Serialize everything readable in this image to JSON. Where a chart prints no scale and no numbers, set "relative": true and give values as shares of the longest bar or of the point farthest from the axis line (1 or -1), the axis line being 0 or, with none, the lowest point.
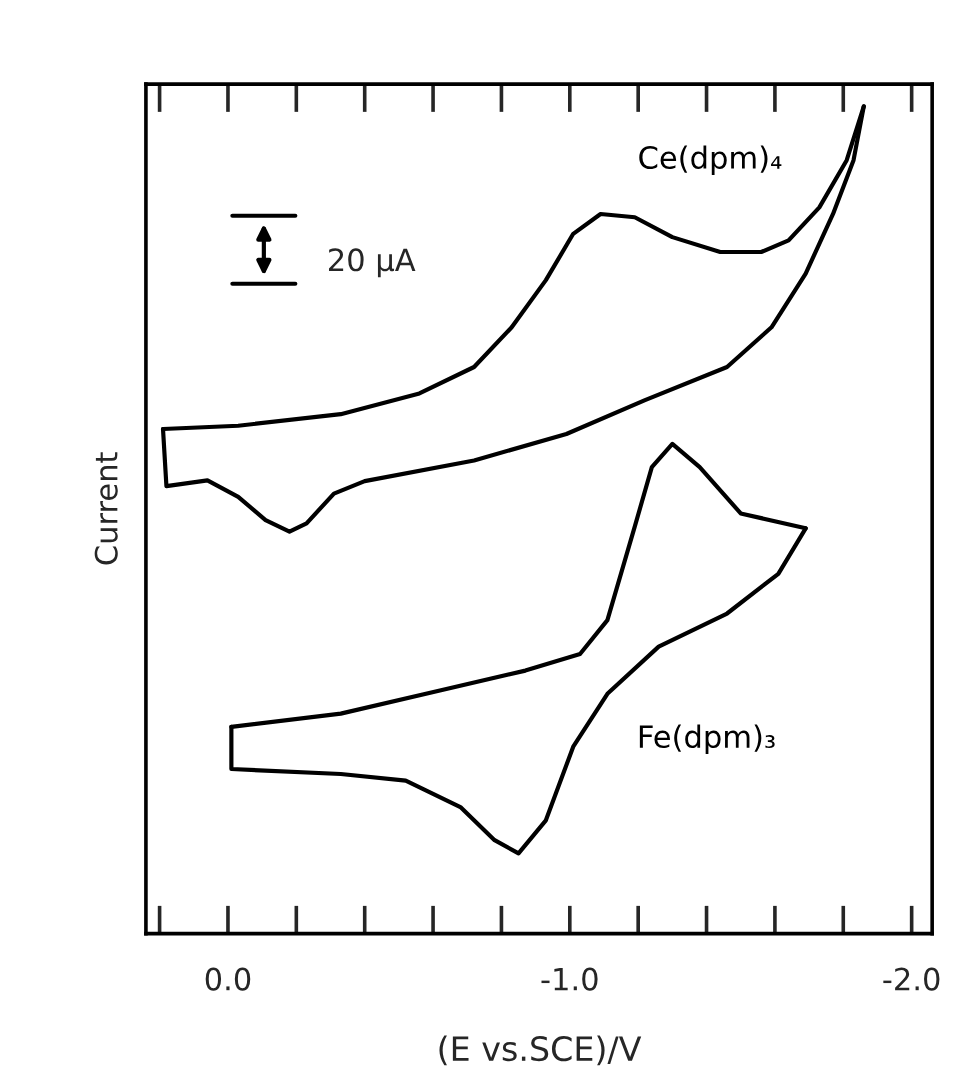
{
  "chart_data": {
    "type": "line",
    "relative": true,
    "xlabel": "(E vs.SCE)/V",
    "ylabel": "Current",
    "tick_labels": "x",
    "grid": false,
    "legend": false,
    "marker": "none",
    "line_style": "solid",
    "xlim": [
      0.24,
      -2.06
    ],
    "xticks": [
      {
        "value": 0.2,
        "label": null
      },
      {
        "value": 0.0,
        "label": "0.0"
      },
      {
        "value": -0.2,
        "label": null
      },
      {
        "value": -0.4,
        "label": null
      },
      {
        "value": -0.6,
        "label": null
      },
      {
        "value": -0.8,
        "label": null
      },
      {
        "value": -1.0,
        "label": "-1.0"
      },
      {
        "value": -1.2,
        "label": null
      },
      {
        "value": -1.4,
        "label": null
      },
      {
        "value": -1.6,
        "label": null
      },
      {
        "value": -1.8,
        "label": null
      },
      {
        "value": -2.0,
        "label": "-2.0"
      }
    ],
    "annotations": [
      "20 μA"
    ],
    "series": [
      {
        "name": "Ce(dpm)₄",
        "color": "#000000",
        "x": [
          0.19,
          -0.03,
          -0.33,
          -0.56,
          -0.72,
          -0.83,
          -0.93,
          -1.01,
          -1.09,
          -1.19,
          -1.3,
          -1.44,
          -1.56,
          -1.64,
          -1.73,
          -1.81,
          -1.86
        ],
        "values": [
          0.61,
          0.614,
          0.628,
          0.653,
          0.685,
          0.733,
          0.79,
          0.846,
          0.87,
          0.866,
          0.842,
          0.824,
          0.824,
          0.838,
          0.878,
          0.935,
          1.0
        ]
      },
      {
        "color": "#000000",
        "x": [
          -1.86,
          -1.83,
          -1.77,
          -1.69,
          -1.59,
          -1.46,
          -1.22,
          -0.99,
          -0.72,
          -0.4,
          -0.31,
          -0.23,
          -0.18,
          -0.11,
          -0.03,
          0.06,
          0.18,
          0.19
        ],
        "values": [
          1.0,
          0.935,
          0.87,
          0.798,
          0.733,
          0.685,
          0.645,
          0.604,
          0.572,
          0.547,
          0.532,
          0.496,
          0.486,
          0.5,
          0.528,
          0.548,
          0.541,
          0.61
        ]
      },
      {
        "color": "#000000",
        "x": [
          -0.01,
          -0.33,
          -0.62,
          -0.87,
          -1.03,
          -1.11,
          -1.19,
          -1.24,
          -1.3,
          -1.38,
          -1.5,
          -1.69
        ],
        "values": [
          0.25,
          0.266,
          0.294,
          0.318,
          0.338,
          0.379,
          0.492,
          0.564,
          0.592,
          0.564,
          0.508,
          0.49
        ]
      },
      {
        "name": "Fe(dpm)₃",
        "color": "#000000",
        "x": [
          -1.69,
          -1.61,
          -1.46,
          -1.26,
          -1.11,
          -1.01,
          -0.93,
          -0.85,
          -0.78,
          -0.68,
          -0.52,
          -0.33,
          -0.01,
          -0.01
        ],
        "values": [
          0.49,
          0.435,
          0.387,
          0.347,
          0.29,
          0.226,
          0.137,
          0.097,
          0.113,
          0.153,
          0.185,
          0.193,
          0.199,
          0.25
        ]
      }
    ]
  }
}
